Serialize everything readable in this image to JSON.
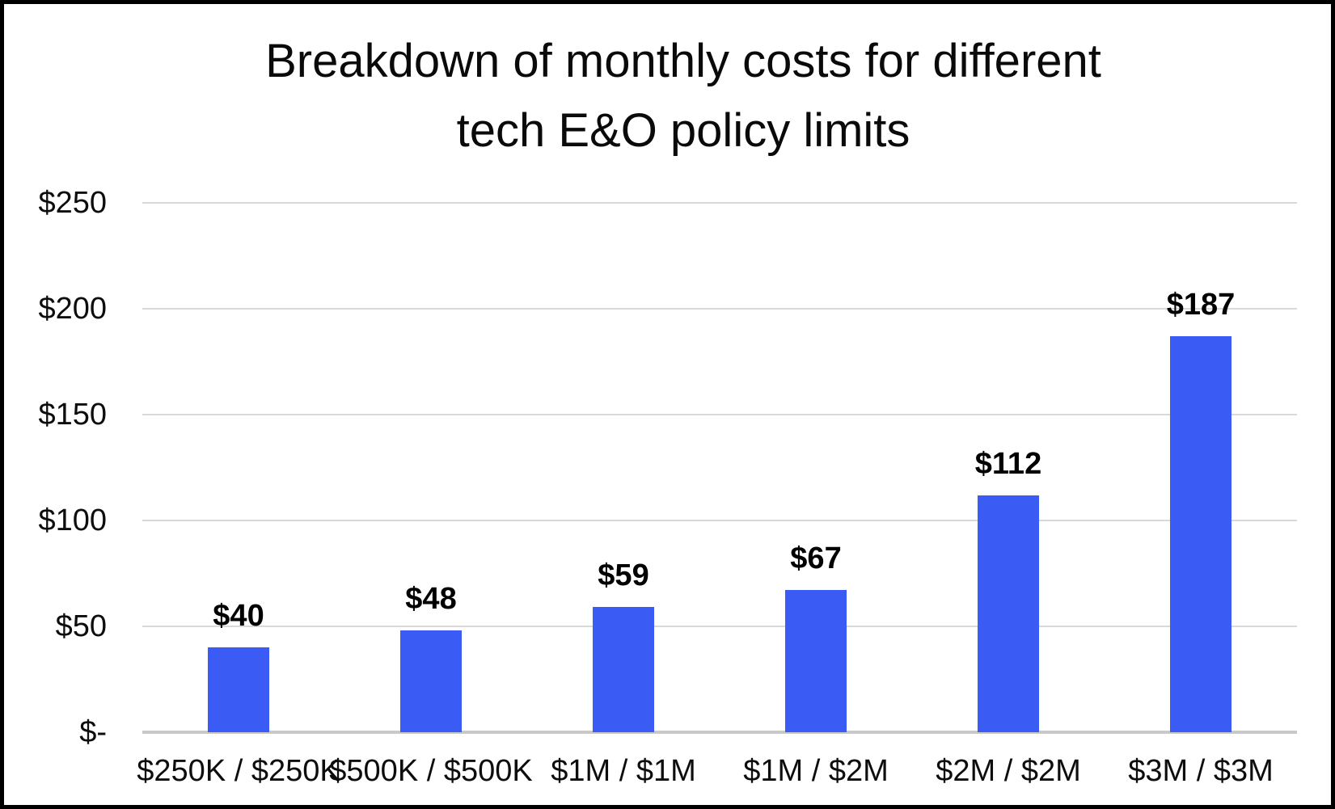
{
  "title": {
    "line1": "Breakdown of monthly costs for different",
    "line2": "tech E&O policy limits"
  },
  "chart_data": {
    "type": "bar",
    "title": "Breakdown of monthly costs for different tech E&O policy limits",
    "categories": [
      "$250K / $250K",
      "$500K / $500K",
      "$1M / $1M",
      "$1M / $2M",
      "$2M / $2M",
      "$3M / $3M"
    ],
    "values": [
      40,
      48,
      59,
      67,
      112,
      187
    ],
    "value_labels": [
      "$40",
      "$48",
      "$59",
      "$67",
      "$112",
      "$187"
    ],
    "y_ticks": [
      {
        "value": 250,
        "label": "$250"
      },
      {
        "value": 200,
        "label": "$200"
      },
      {
        "value": 150,
        "label": "$150"
      },
      {
        "value": 100,
        "label": "$100"
      },
      {
        "value": 50,
        "label": "$50"
      },
      {
        "value": 0,
        "label": "$-"
      }
    ],
    "ylim": [
      0,
      250
    ],
    "xlabel": "",
    "ylabel": "",
    "grid": true,
    "legend": "none",
    "bar_color": "#3a5cf5",
    "gridline_color": "#d9d9d9",
    "axis_line_color": "#c9c9c9",
    "text_color": "#0d0d0d"
  }
}
